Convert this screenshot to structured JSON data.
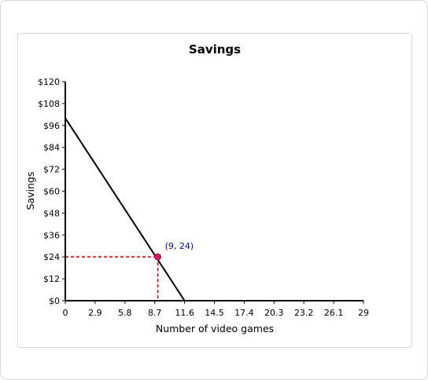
{
  "chart_data": {
    "type": "line",
    "title": "Savings",
    "xlabel": "Number of video games",
    "ylabel": "Savings",
    "x_ticks": [
      "0",
      "2.9",
      "5.8",
      "8.7",
      "11.6",
      "14.5",
      "17.4",
      "20.3",
      "23.2",
      "26.1",
      "29"
    ],
    "y_ticks": [
      "$0",
      "$12",
      "$24",
      "$36",
      "$48",
      "$60",
      "$72",
      "$84",
      "$96",
      "$108",
      "$120"
    ],
    "xlim": [
      0,
      29
    ],
    "ylim": [
      0,
      120
    ],
    "series": [
      {
        "values": [
          {
            "x": 0,
            "y": 100
          },
          {
            "x": 11.6,
            "y": 0
          }
        ],
        "color": "#000000"
      }
    ],
    "highlight_point": {
      "x": 9,
      "y": 24,
      "label": "(9, 24)",
      "color": "#e0115f",
      "label_color": "#0000cc",
      "guide_color": "#cc0000"
    },
    "grid": false
  }
}
